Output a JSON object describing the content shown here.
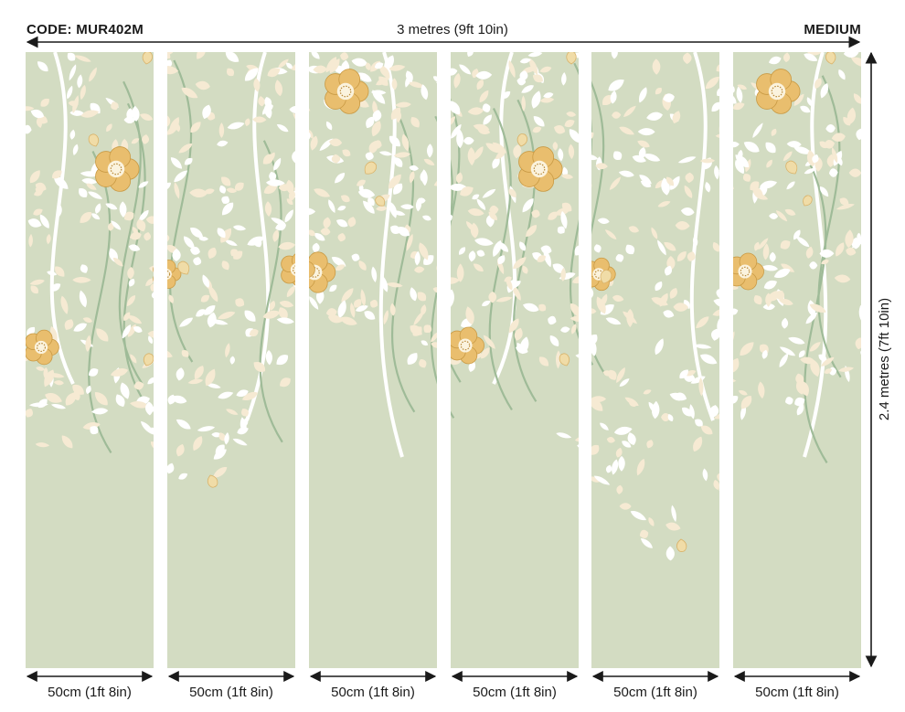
{
  "header": {
    "code": "CODE: MUR402M",
    "total_width": "3 metres (9ft 10in)",
    "size": "MEDIUM"
  },
  "height_label": "2.4 metres (7ft 10in)",
  "panels": [
    {
      "width_label": "50cm (1ft 8in)"
    },
    {
      "width_label": "50cm (1ft 8in)"
    },
    {
      "width_label": "50cm (1ft 8in)"
    },
    {
      "width_label": "50cm (1ft 8in)"
    },
    {
      "width_label": "50cm (1ft 8in)"
    },
    {
      "width_label": "50cm (1ft 8in)"
    }
  ],
  "colors": {
    "background": "#d3dcc2",
    "vine": "#9fbb98",
    "leaf_white": "#ffffff",
    "leaf_cream": "#f6ead3",
    "flower": "#e9be6e",
    "flower_center": "#fbf3de",
    "dimension_line": "#1a1a1a"
  }
}
